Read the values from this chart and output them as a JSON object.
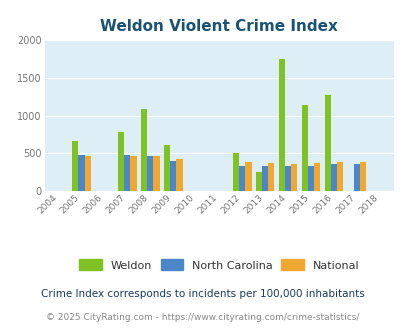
{
  "title": "Weldon Violent Crime Index",
  "years": [
    2004,
    2005,
    2006,
    2007,
    2008,
    2009,
    2010,
    2011,
    2012,
    2013,
    2014,
    2015,
    2016,
    2017,
    2018
  ],
  "weldon": [
    null,
    670,
    null,
    780,
    1090,
    610,
    null,
    null,
    500,
    250,
    1750,
    1140,
    1270,
    null,
    null
  ],
  "north_carolina": [
    null,
    475,
    null,
    475,
    470,
    400,
    null,
    null,
    340,
    330,
    330,
    340,
    365,
    365,
    null
  ],
  "national": [
    null,
    470,
    null,
    470,
    465,
    430,
    null,
    null,
    385,
    370,
    365,
    370,
    390,
    390,
    null
  ],
  "bar_color_weldon": "#7ec225",
  "bar_color_nc": "#4a86c8",
  "bar_color_national": "#f0a830",
  "bg_color": "#ddeef6",
  "title_color": "#1a5276",
  "ylim": [
    0,
    2000
  ],
  "yticks": [
    0,
    500,
    1000,
    1500,
    2000
  ],
  "legend_labels": [
    "Weldon",
    "North Carolina",
    "National"
  ],
  "footnote1": "Crime Index corresponds to incidents per 100,000 inhabitants",
  "footnote2": "© 2025 CityRating.com - https://www.cityrating.com/crime-statistics/",
  "bar_width": 0.27,
  "footnote1_color": "#1a3a5c",
  "footnote2_color": "#888888"
}
